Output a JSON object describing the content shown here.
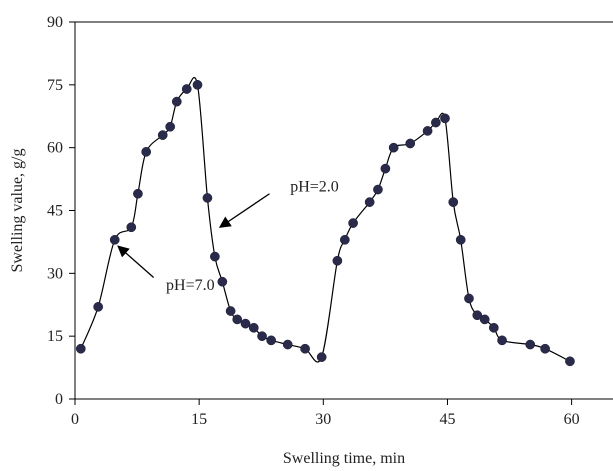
{
  "chart_data": {
    "type": "line",
    "title": "",
    "xlabel": "Swelling time, min",
    "ylabel": "Swelling value, g/g",
    "xlim": [
      0,
      65
    ],
    "ylim": [
      0,
      90
    ],
    "x_ticks": [
      0,
      15,
      30,
      45,
      60
    ],
    "y_ticks": [
      0,
      15,
      30,
      45,
      60,
      75,
      90
    ],
    "grid": false,
    "legend": "none",
    "marker": "circle",
    "series": [
      {
        "x": [
          0.7,
          2.8,
          4.8,
          6.8,
          7.6,
          8.6,
          10.6,
          11.5,
          12.3,
          13.5,
          14.8,
          16.0,
          16.9,
          17.8,
          18.8,
          19.6,
          20.6,
          21.6,
          22.6,
          23.7,
          25.7,
          27.8,
          29.8,
          31.7,
          32.6,
          33.6,
          35.6,
          36.6,
          37.5,
          38.5,
          40.5,
          42.6,
          43.6,
          44.7,
          45.7,
          46.6,
          47.6,
          48.6,
          49.5,
          50.6,
          51.6,
          55.0,
          56.8,
          59.8
        ],
        "y": [
          12,
          22,
          38,
          41,
          49,
          59,
          63,
          65,
          71,
          74,
          75,
          48,
          34,
          28,
          21,
          19,
          18,
          17,
          15,
          14,
          13,
          12,
          10,
          33,
          38,
          42,
          47,
          50,
          55,
          60,
          61,
          64,
          66,
          67,
          47,
          38,
          24,
          20,
          19,
          17,
          14,
          13,
          12,
          9
        ]
      }
    ],
    "annotations": [
      {
        "text": "pH=2.0",
        "text_at": [
          26.0,
          49.5
        ],
        "arrow_from": [
          23.5,
          49.0
        ],
        "arrow_to": [
          17.5,
          41.0
        ]
      },
      {
        "text": "pH=7.0",
        "text_at": [
          11.0,
          26.0
        ],
        "arrow_from": [
          9.5,
          29.0
        ],
        "arrow_to": [
          5.2,
          36.5
        ]
      }
    ]
  }
}
